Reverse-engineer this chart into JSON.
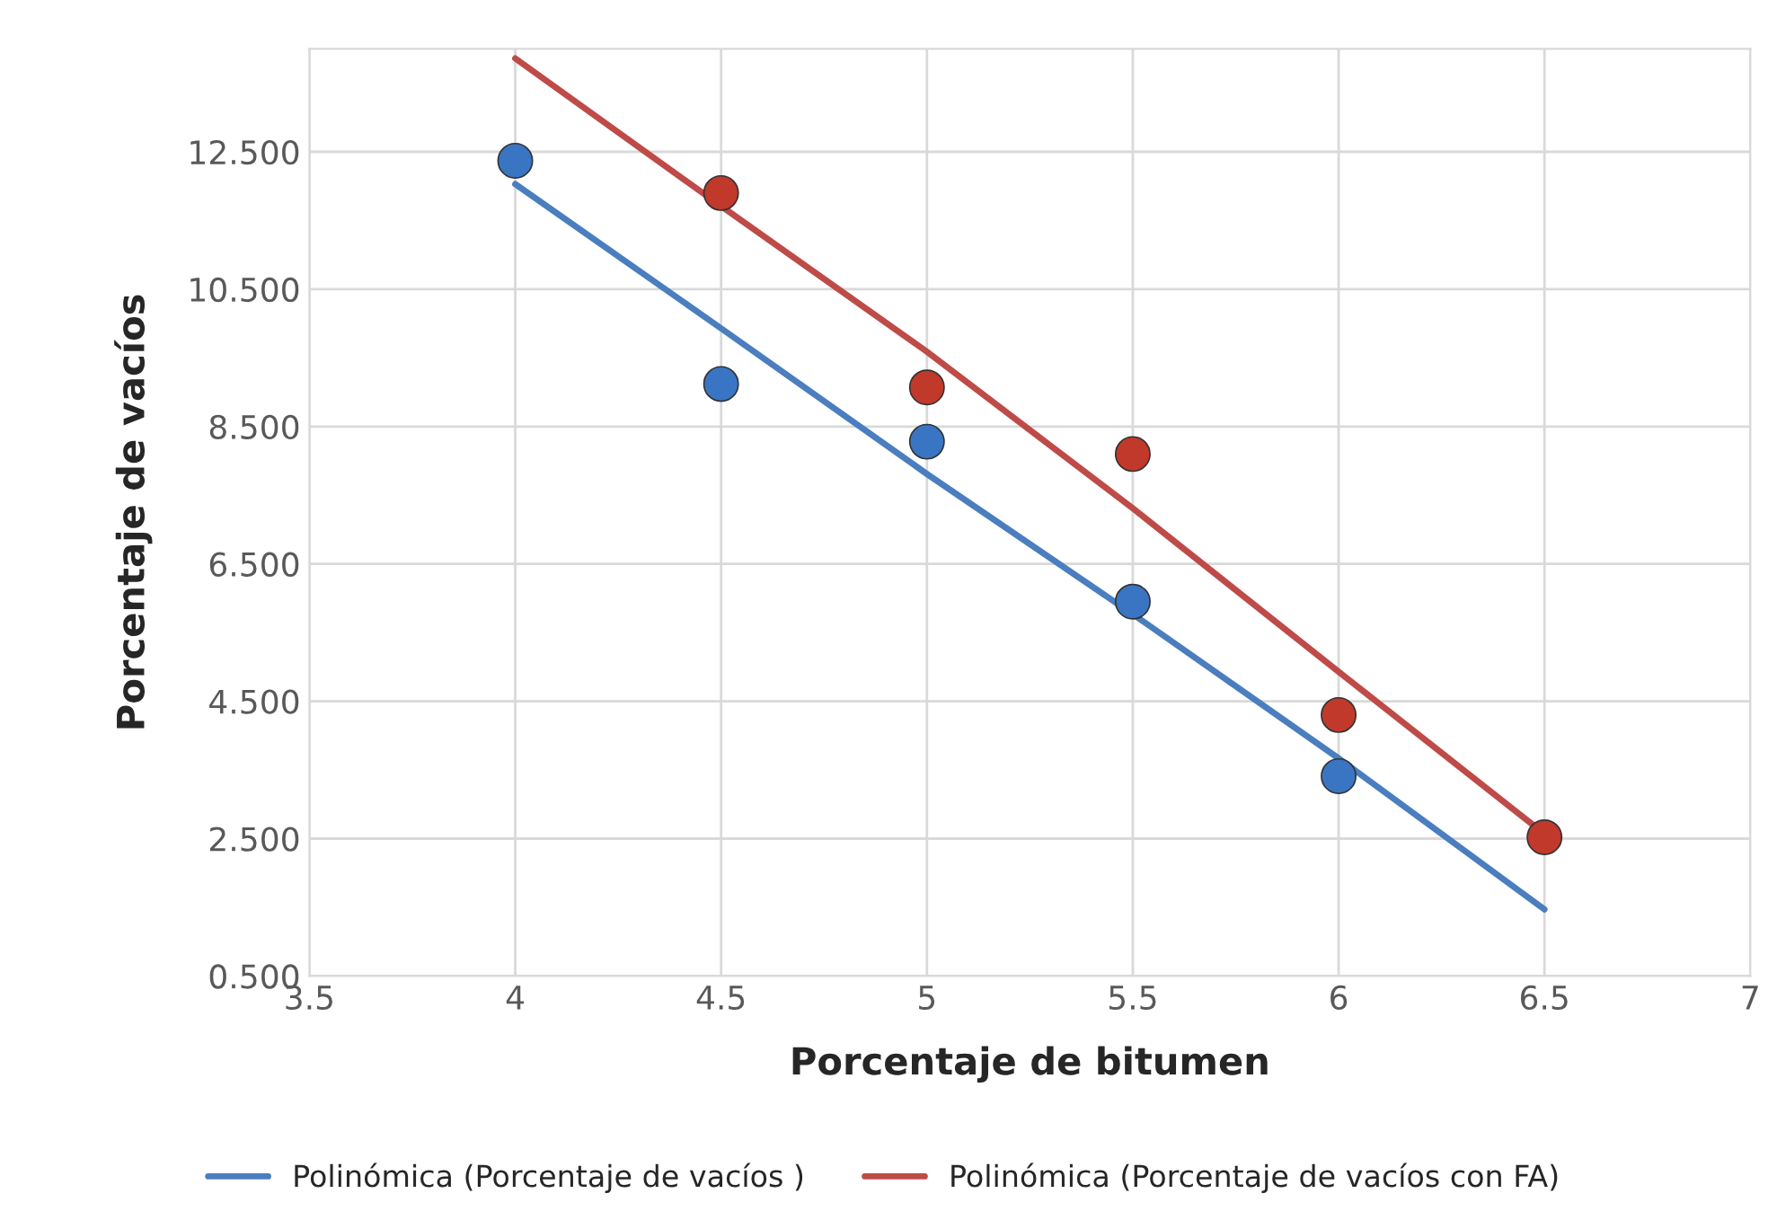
{
  "chart_data": {
    "type": "scatter",
    "xlabel": "Porcentaje de bitumen",
    "ylabel": "Porcentaje de vacíos",
    "xlim": [
      3.5,
      7
    ],
    "xticks": [
      3.5,
      4,
      4.5,
      5,
      5.5,
      6,
      6.5,
      7
    ],
    "ylim": [
      0.5,
      14
    ],
    "yticks": [
      {
        "value": 0.5,
        "label": "0.500"
      },
      {
        "value": 2.5,
        "label": "2.500"
      },
      {
        "value": 4.5,
        "label": "4.500"
      },
      {
        "value": 6.5,
        "label": "6.500"
      },
      {
        "value": 8.5,
        "label": "8.500"
      },
      {
        "value": 10.5,
        "label": "10.500"
      },
      {
        "value": 12.5,
        "label": "12.500"
      }
    ],
    "grid": true,
    "legend": "bottom",
    "series": [
      {
        "marker": "circle",
        "color": "#3a75c4",
        "x": [
          4,
          4.5,
          5,
          5.5,
          6
        ],
        "values": [
          12.37,
          9.12,
          8.28,
          5.95,
          3.41
        ]
      },
      {
        "marker": "circle",
        "color": "#c0392b",
        "x": [
          4.5,
          5,
          5.5,
          6,
          6.5
        ],
        "values": [
          11.9,
          9.07,
          8.1,
          4.3,
          2.52
        ]
      },
      {
        "type": "line",
        "marker": "none",
        "name": "Polinómica (Porcentaje de vacíos )",
        "color": "#4a7ebf",
        "x": [
          4,
          4.5,
          5,
          5.5,
          6,
          6.5
        ],
        "values": [
          12.03,
          9.93,
          7.81,
          5.77,
          3.67,
          1.47
        ]
      },
      {
        "type": "line",
        "marker": "none",
        "name": "Polinómica (Porcentaje de vacíos con FA)",
        "color": "#be4b48",
        "x": [
          4,
          4.5,
          5,
          5.5,
          6,
          6.5
        ],
        "values": [
          13.86,
          11.71,
          9.59,
          7.31,
          4.93,
          2.57
        ]
      }
    ]
  }
}
